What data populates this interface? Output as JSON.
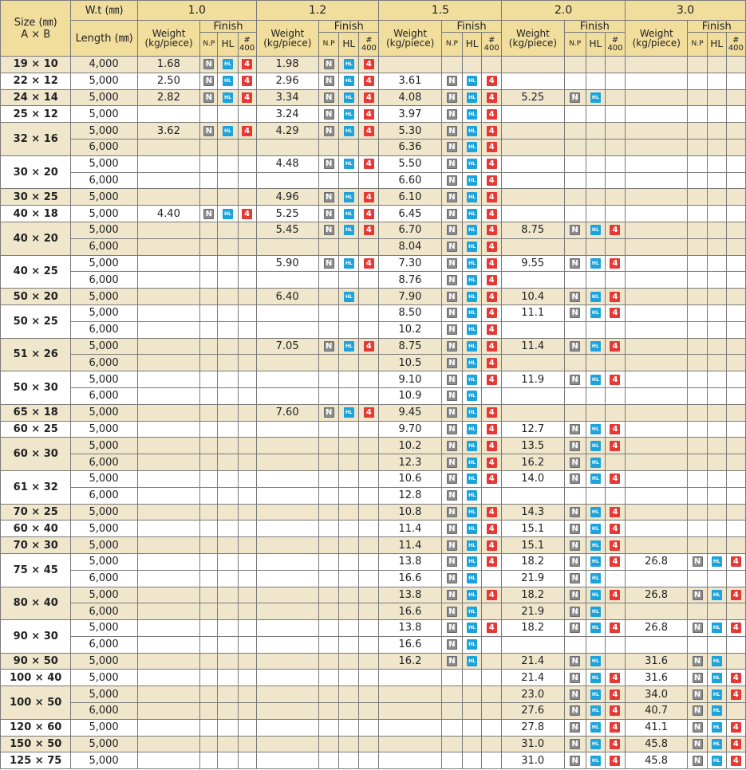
{
  "header": {
    "size_label": "Size  (㎜)",
    "size_axes": "A  ×  B",
    "wt_label": "W.t (㎜)",
    "length_label": "Length (㎜)",
    "thicknesses": [
      "1.0",
      "1.2",
      "1.5",
      "2.0",
      "3.0"
    ],
    "weight_label_1": "Weight",
    "weight_label_2": "(kg/piece)",
    "finish_label": "Finish",
    "np_label": "N.P",
    "hl_label": "HL",
    "no400_hash": "#",
    "no400_num": "400"
  },
  "badges": {
    "np": "N",
    "hl": "HL",
    "no400": "4"
  },
  "colors": {
    "header_bg": "#f1dd9c",
    "shade_row": "#efe6cc",
    "np_badge": "#8c8c8c",
    "hl_badge": "#1da3dc",
    "no400_badge": "#e53935"
  },
  "groups": [
    {
      "size": "19 × 10",
      "shade": true,
      "rows": [
        [
          "4,000",
          "1.68",
          "NH4",
          "1.98",
          "NH4",
          "",
          "",
          "",
          "",
          ""
        ]
      ]
    },
    {
      "size": "22 × 12",
      "shade": false,
      "rows": [
        [
          "5,000",
          "2.50",
          "NH4",
          "2.96",
          "NH4",
          "3.61",
          "NH4",
          "",
          "",
          ""
        ]
      ]
    },
    {
      "size": "24 × 14",
      "shade": true,
      "rows": [
        [
          "5,000",
          "2.82",
          "NH4",
          "3.34",
          "NH4",
          "4.08",
          "NH4",
          "5.25",
          "NH",
          ""
        ]
      ]
    },
    {
      "size": "25 × 12",
      "shade": false,
      "rows": [
        [
          "5,000",
          "",
          "",
          "3.24",
          "NH4",
          "3.97",
          "NH4",
          "",
          "",
          ""
        ]
      ]
    },
    {
      "size": "32 × 16",
      "shade": true,
      "rows": [
        [
          "5,000",
          "3.62",
          "NH4",
          "4.29",
          "NH4",
          "5.30",
          "NH4",
          "",
          "",
          ""
        ],
        [
          "6,000",
          "",
          "",
          "",
          "",
          "6.36",
          "NH4",
          "",
          "",
          ""
        ]
      ]
    },
    {
      "size": "30 × 20",
      "shade": false,
      "rows": [
        [
          "5,000",
          "",
          "",
          "4.48",
          "NH4",
          "5.50",
          "NH4",
          "",
          "",
          ""
        ],
        [
          "6,000",
          "",
          "",
          "",
          "",
          "6.60",
          "NH4",
          "",
          "",
          ""
        ]
      ]
    },
    {
      "size": "30 × 25",
      "shade": true,
      "rows": [
        [
          "5,000",
          "",
          "",
          "4.96",
          "NH4",
          "6.10",
          "NH4",
          "",
          "",
          ""
        ]
      ]
    },
    {
      "size": "40 × 18",
      "shade": false,
      "rows": [
        [
          "5,000",
          "4.40",
          "NH4",
          "5.25",
          "NH4",
          "6.45",
          "NH4",
          "",
          "",
          ""
        ]
      ]
    },
    {
      "size": "40 × 20",
      "shade": true,
      "rows": [
        [
          "5,000",
          "",
          "",
          "5.45",
          "NH4",
          "6.70",
          "NH4",
          "8.75",
          "NH4",
          ""
        ],
        [
          "6,000",
          "",
          "",
          "",
          "",
          "8.04",
          "NH4",
          "",
          "",
          ""
        ]
      ]
    },
    {
      "size": "40 × 25",
      "shade": false,
      "rows": [
        [
          "5,000",
          "",
          "",
          "5.90",
          "NH4",
          "7.30",
          "NH4",
          "9.55",
          "NH4",
          ""
        ],
        [
          "6,000",
          "",
          "",
          "",
          "",
          "8.76",
          "NH4",
          "",
          "",
          ""
        ]
      ]
    },
    {
      "size": "50 × 20",
      "shade": true,
      "rows": [
        [
          "5,000",
          "",
          "",
          "6.40",
          "H",
          "7.90",
          "NH4",
          "10.4",
          "NH4",
          ""
        ]
      ]
    },
    {
      "size": "50 × 25",
      "shade": false,
      "rows": [
        [
          "5,000",
          "",
          "",
          "",
          "",
          "8.50",
          "NH4",
          "11.1",
          "NH4",
          ""
        ],
        [
          "6,000",
          "",
          "",
          "",
          "",
          "10.2",
          "NH4",
          "",
          "",
          ""
        ]
      ]
    },
    {
      "size": "51 × 26",
      "shade": true,
      "rows": [
        [
          "5,000",
          "",
          "",
          "7.05",
          "NH4",
          "8.75",
          "NH4",
          "11.4",
          "NH4",
          ""
        ],
        [
          "6,000",
          "",
          "",
          "",
          "",
          "10.5",
          "NH4",
          "",
          "",
          ""
        ]
      ]
    },
    {
      "size": "50 × 30",
      "shade": false,
      "rows": [
        [
          "5,000",
          "",
          "",
          "",
          "",
          "9.10",
          "NH4",
          "11.9",
          "NH4",
          ""
        ],
        [
          "6,000",
          "",
          "",
          "",
          "",
          "10.9",
          "NH",
          "",
          "",
          ""
        ]
      ]
    },
    {
      "size": "65 × 18",
      "shade": true,
      "rows": [
        [
          "5,000",
          "",
          "",
          "7.60",
          "NH4",
          "9.45",
          "NH4",
          "",
          "",
          ""
        ]
      ]
    },
    {
      "size": "60 × 25",
      "shade": false,
      "rows": [
        [
          "5,000",
          "",
          "",
          "",
          "",
          "9.70",
          "NH4",
          "12.7",
          "NH4",
          ""
        ]
      ]
    },
    {
      "size": "60 × 30",
      "shade": true,
      "rows": [
        [
          "5,000",
          "",
          "",
          "",
          "",
          "10.2",
          "NH4",
          "13.5",
          "NH4",
          ""
        ],
        [
          "6,000",
          "",
          "",
          "",
          "",
          "12.3",
          "NH4",
          "16.2",
          "NH",
          ""
        ]
      ]
    },
    {
      "size": "61 × 32",
      "shade": false,
      "rows": [
        [
          "5,000",
          "",
          "",
          "",
          "",
          "10.6",
          "NH4",
          "14.0",
          "NH4",
          ""
        ],
        [
          "6,000",
          "",
          "",
          "",
          "",
          "12.8",
          "NH",
          "",
          "",
          ""
        ]
      ]
    },
    {
      "size": "70 × 25",
      "shade": true,
      "rows": [
        [
          "5,000",
          "",
          "",
          "",
          "",
          "10.8",
          "NH4",
          "14.3",
          "NH4",
          ""
        ]
      ]
    },
    {
      "size": "60 × 40",
      "shade": false,
      "rows": [
        [
          "5,000",
          "",
          "",
          "",
          "",
          "11.4",
          "NH4",
          "15.1",
          "NH4",
          ""
        ]
      ]
    },
    {
      "size": "70 × 30",
      "shade": true,
      "rows": [
        [
          "5,000",
          "",
          "",
          "",
          "",
          "11.4",
          "NH4",
          "15.1",
          "NH4",
          ""
        ]
      ]
    },
    {
      "size": "75 × 45",
      "shade": false,
      "rows": [
        [
          "5,000",
          "",
          "",
          "",
          "",
          "13.8",
          "NH4",
          "18.2",
          "NH4",
          "26.8",
          "NH4"
        ],
        [
          "6,000",
          "",
          "",
          "",
          "",
          "16.6",
          "NH",
          "21.9",
          "NH",
          "",
          ""
        ]
      ]
    },
    {
      "size": "80 × 40",
      "shade": true,
      "rows": [
        [
          "5,000",
          "",
          "",
          "",
          "",
          "13.8",
          "NH4",
          "18.2",
          "NH4",
          "26.8",
          "NH4"
        ],
        [
          "6,000",
          "",
          "",
          "",
          "",
          "16.6",
          "NH",
          "21.9",
          "NH",
          "",
          ""
        ]
      ]
    },
    {
      "size": "90 × 30",
      "shade": false,
      "rows": [
        [
          "5,000",
          "",
          "",
          "",
          "",
          "13.8",
          "NH4",
          "18.2",
          "NH4",
          "26.8",
          "NH4"
        ],
        [
          "6,000",
          "",
          "",
          "",
          "",
          "16.6",
          "NH",
          "",
          "",
          "",
          ""
        ]
      ]
    },
    {
      "size": "90 × 50",
      "shade": true,
      "rows": [
        [
          "5,000",
          "",
          "",
          "",
          "",
          "16.2",
          "NH",
          "21.4",
          "NH",
          "31.6",
          "NH"
        ]
      ]
    },
    {
      "size": "100 × 40",
      "shade": false,
      "rows": [
        [
          "5,000",
          "",
          "",
          "",
          "",
          "",
          "",
          "21.4",
          "NH4",
          "31.6",
          "NH4"
        ]
      ]
    },
    {
      "size": "100 × 50",
      "shade": true,
      "rows": [
        [
          "5,000",
          "",
          "",
          "",
          "",
          "",
          "",
          "23.0",
          "NH4",
          "34.0",
          "NH4"
        ],
        [
          "6,000",
          "",
          "",
          "",
          "",
          "",
          "",
          "27.6",
          "NH4",
          "40.7",
          "NH"
        ]
      ]
    },
    {
      "size": "120 × 60",
      "shade": false,
      "rows": [
        [
          "5,000",
          "",
          "",
          "",
          "",
          "",
          "",
          "27.8",
          "NH4",
          "41.1",
          "NH4"
        ]
      ]
    },
    {
      "size": "150 × 50",
      "shade": true,
      "rows": [
        [
          "5,000",
          "",
          "",
          "",
          "",
          "",
          "",
          "31.0",
          "NH4",
          "45.8",
          "NH4"
        ]
      ]
    },
    {
      "size": "125 × 75",
      "shade": false,
      "rows": [
        [
          "5,000",
          "",
          "",
          "",
          "",
          "",
          "",
          "31.0",
          "NH4",
          "45.8",
          "NH4"
        ]
      ]
    }
  ]
}
